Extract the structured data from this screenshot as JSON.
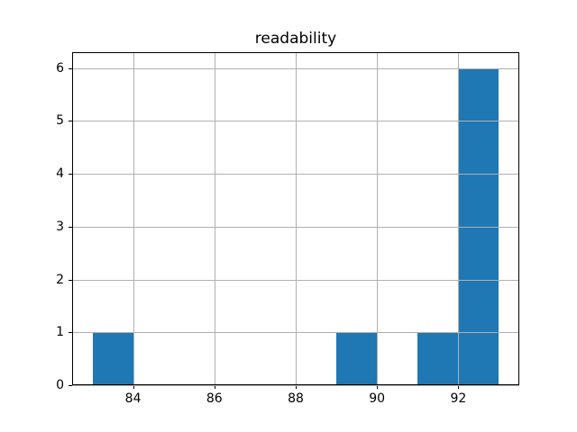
{
  "chart_data": {
    "type": "bar",
    "subtype": "histogram",
    "title": "readability",
    "xlabel": "",
    "ylabel": "",
    "bars": [
      {
        "x0": 83,
        "x1": 84,
        "count": 1
      },
      {
        "x0": 89,
        "x1": 90,
        "count": 1
      },
      {
        "x0": 91,
        "x1": 92,
        "count": 1
      },
      {
        "x0": 92,
        "x1": 93,
        "count": 6
      }
    ],
    "bin_edges": [
      83,
      84,
      85,
      86,
      87,
      88,
      89,
      90,
      91,
      92,
      93
    ],
    "bin_counts": [
      1,
      0,
      0,
      0,
      0,
      0,
      1,
      0,
      1,
      6
    ],
    "xticks": [
      84,
      86,
      88,
      90,
      92
    ],
    "yticks": [
      0,
      1,
      2,
      3,
      4,
      5,
      6
    ],
    "xlim": [
      82.5,
      93.5
    ],
    "ylim": [
      0,
      6.3
    ],
    "grid": true,
    "legend": false,
    "colors": {
      "bar": "#1f77b4",
      "grid": "#b0b0b0",
      "spine": "#000000",
      "background": "#ffffff",
      "text": "#000000"
    }
  }
}
